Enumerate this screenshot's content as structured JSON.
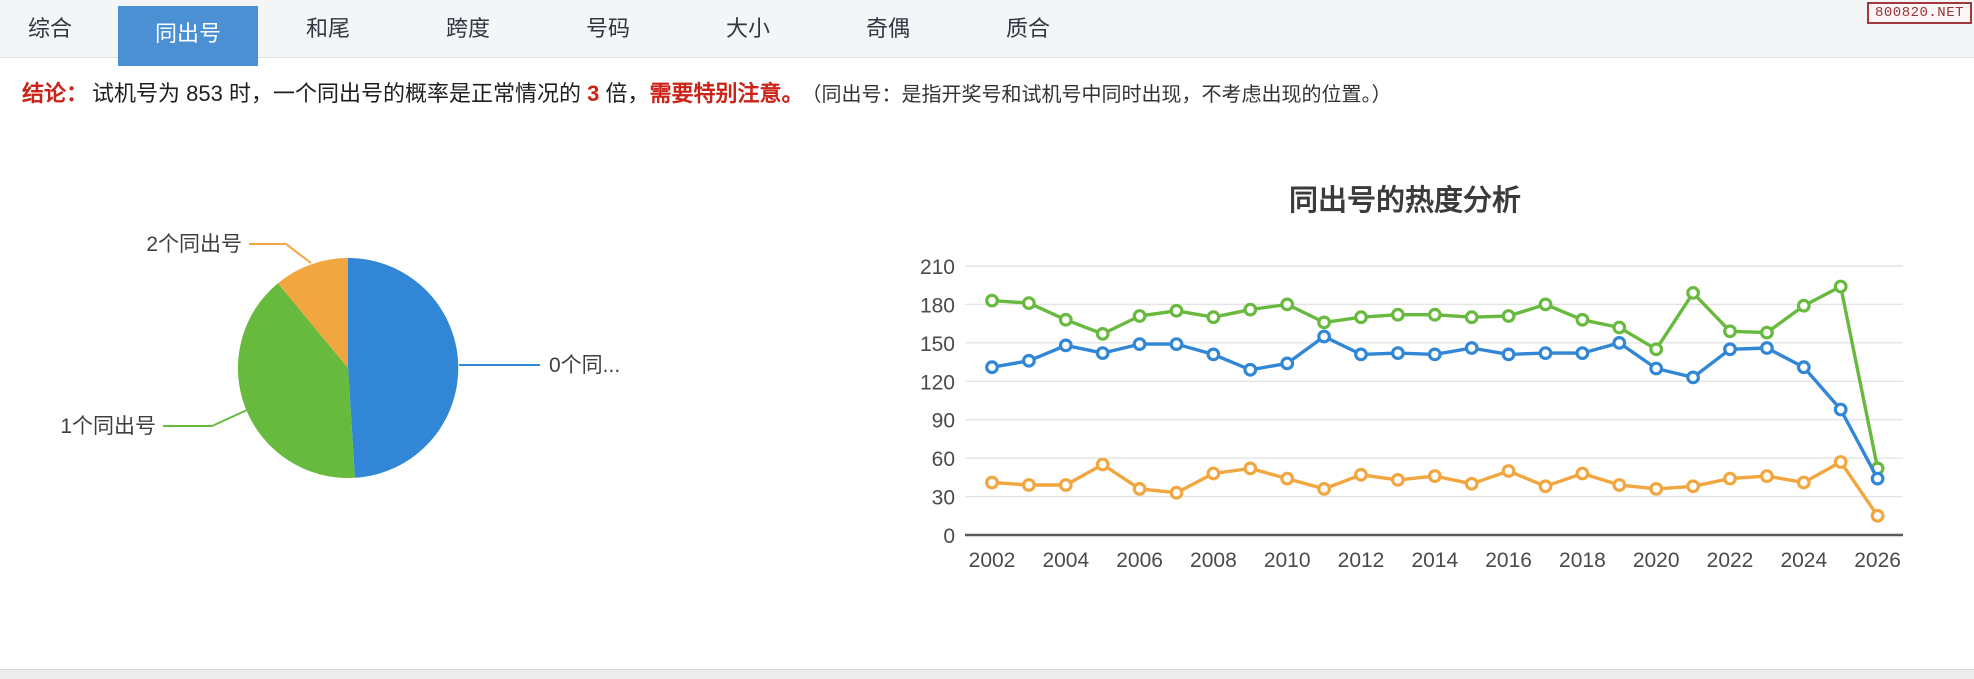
{
  "tabs": {
    "items": [
      {
        "label": "综合",
        "active": false
      },
      {
        "label": "同出号",
        "active": true
      },
      {
        "label": "和尾",
        "active": false
      },
      {
        "label": "跨度",
        "active": false
      },
      {
        "label": "号码",
        "active": false
      },
      {
        "label": "大小",
        "active": false
      },
      {
        "label": "奇偶",
        "active": false
      },
      {
        "label": "质合",
        "active": false
      }
    ]
  },
  "badge": {
    "text": "800820.NET"
  },
  "conclusion": {
    "prefix": "结论：",
    "part1": "试机号为 853 时，一个同出号的概率是正常情况的 ",
    "multiplier": "3",
    "part2": " 倍，",
    "warning": "需要特别注意。",
    "note": "（同出号：是指开奖号和试机号中同时出现，不考虑出现的位置。）"
  },
  "colors": {
    "blue": "#3187d6",
    "green": "#68ba3f",
    "orange": "#f2a640",
    "tab_active": "#4a90d2",
    "red": "#cc2217",
    "badge_red": "#9c3133"
  },
  "chart_data": [
    {
      "type": "pie",
      "title": "",
      "start_angle": "top",
      "direction": "clockwise",
      "slices": [
        {
          "label": "0个同...",
          "value": 49,
          "color_key": "blue"
        },
        {
          "label": "1个同出号",
          "value": 40,
          "color_key": "green"
        },
        {
          "label": "2个同出号",
          "value": 11,
          "color_key": "orange"
        }
      ]
    },
    {
      "type": "line",
      "title": "同出号的热度分析",
      "x_years": [
        2002,
        2003,
        2004,
        2005,
        2006,
        2007,
        2008,
        2009,
        2010,
        2011,
        2012,
        2013,
        2014,
        2015,
        2016,
        2017,
        2018,
        2019,
        2020,
        2021,
        2022,
        2023,
        2024,
        2025,
        2026
      ],
      "x_tick_labels": [
        "2002",
        "2004",
        "2006",
        "2008",
        "2010",
        "2012",
        "2014",
        "2016",
        "2018",
        "2020",
        "2022",
        "2024",
        "2026"
      ],
      "ylim": [
        0,
        210
      ],
      "yticks": [
        0,
        30,
        60,
        90,
        120,
        150,
        180,
        210
      ],
      "grid": true,
      "legend": "none",
      "marker": "hollow-circle",
      "series": [
        {
          "name": "green",
          "color_key": "green",
          "values": [
            183,
            181,
            168,
            157,
            171,
            175,
            170,
            176,
            180,
            166,
            170,
            172,
            172,
            170,
            171,
            180,
            168,
            162,
            145,
            189,
            159,
            158,
            179,
            194,
            52
          ]
        },
        {
          "name": "blue",
          "color_key": "blue",
          "values": [
            131,
            136,
            148,
            142,
            149,
            149,
            141,
            129,
            134,
            155,
            141,
            142,
            141,
            146,
            141,
            142,
            142,
            150,
            130,
            123,
            145,
            146,
            131,
            98,
            44
          ]
        },
        {
          "name": "orange",
          "color_key": "orange",
          "values": [
            41,
            39,
            39,
            55,
            36,
            33,
            48,
            52,
            44,
            36,
            47,
            43,
            46,
            40,
            50,
            38,
            48,
            39,
            36,
            38,
            44,
            46,
            41,
            57,
            15
          ]
        }
      ]
    }
  ]
}
